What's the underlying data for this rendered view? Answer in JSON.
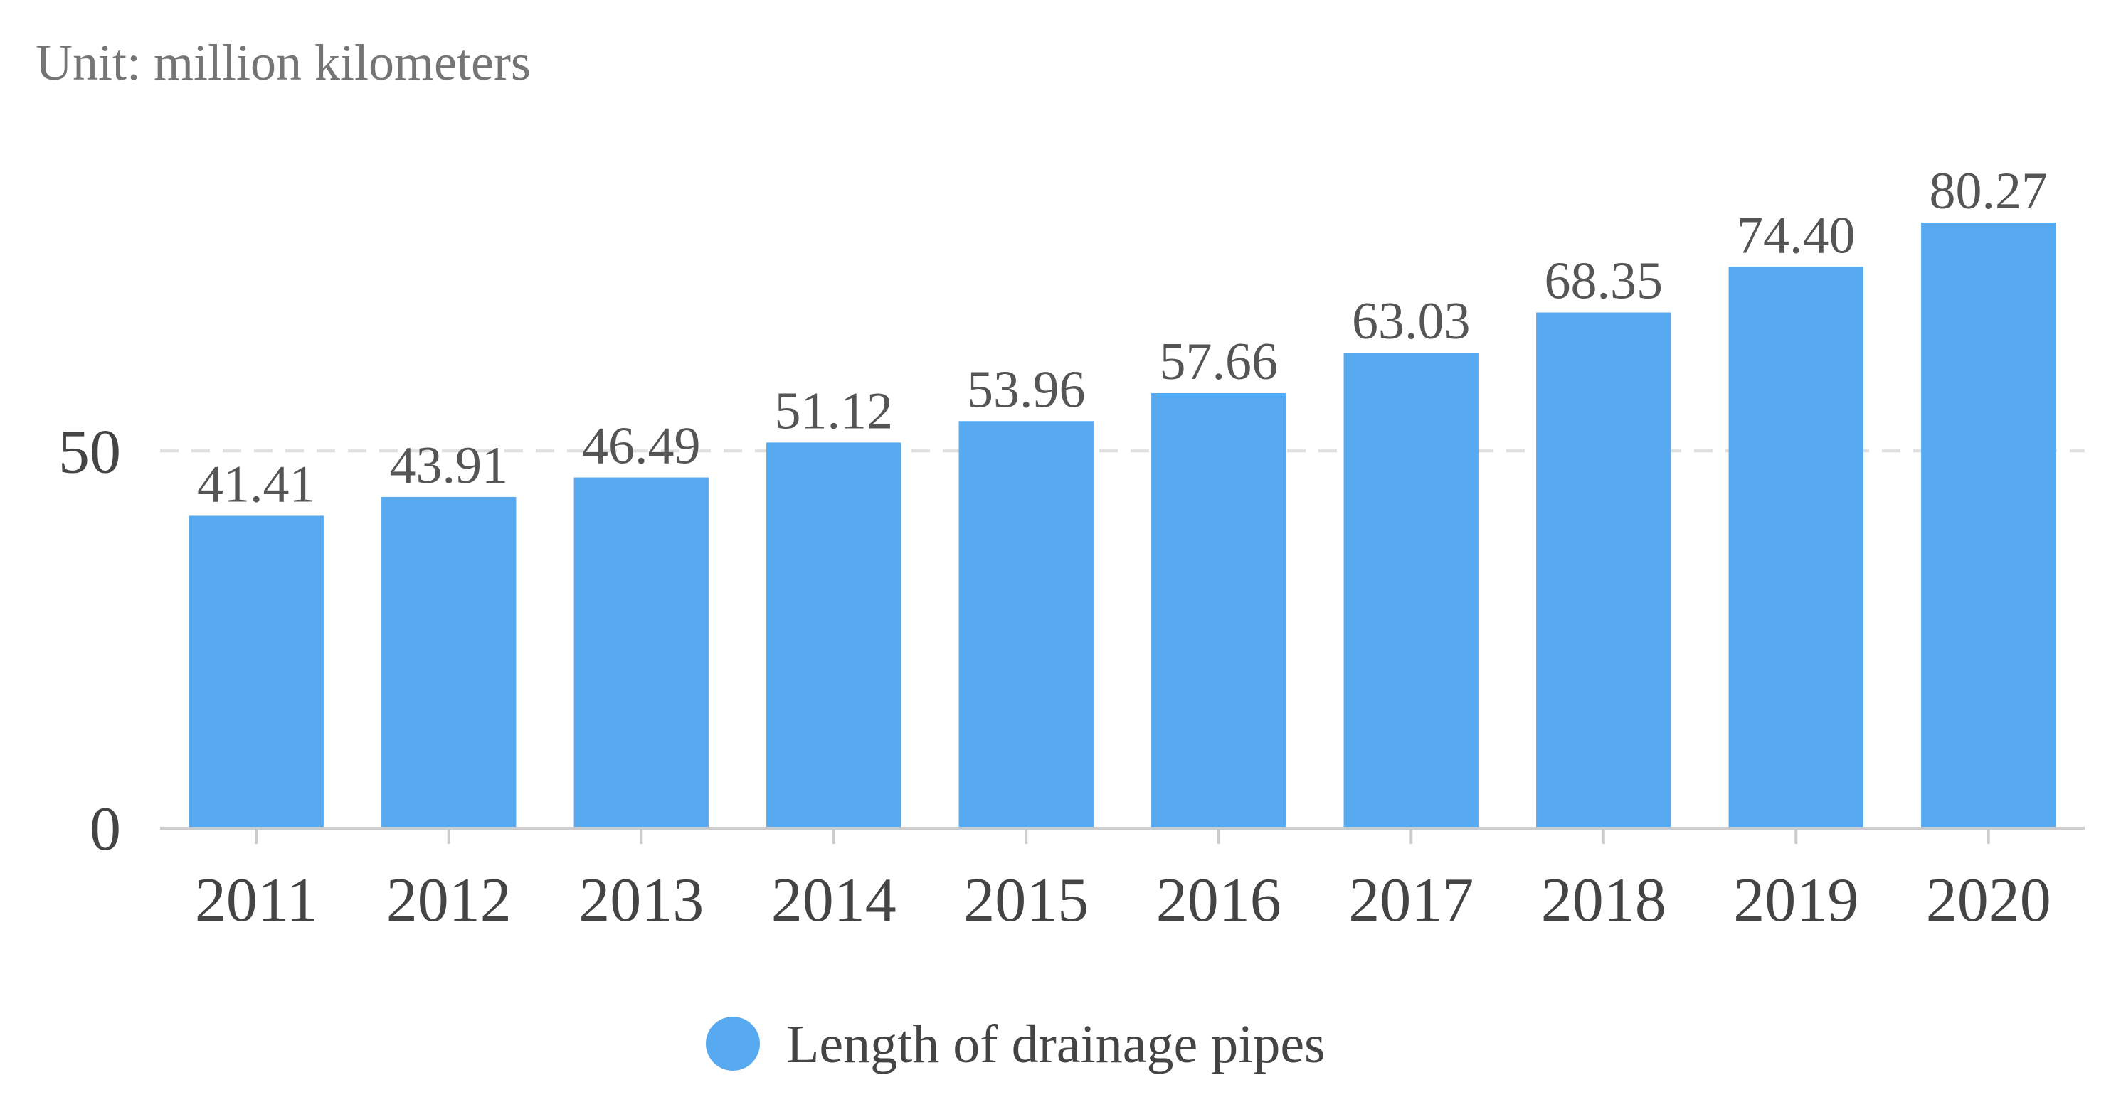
{
  "chart_data": {
    "type": "bar",
    "unit_label": "Unit: million kilometers",
    "categories": [
      "2011",
      "2012",
      "2013",
      "2014",
      "2015",
      "2016",
      "2017",
      "2018",
      "2019",
      "2020"
    ],
    "series": [
      {
        "name": "Length of drainage pipes",
        "color": "#58aaf0",
        "values": [
          41.41,
          43.91,
          46.49,
          51.12,
          53.96,
          57.66,
          63.03,
          68.35,
          74.4,
          80.27
        ],
        "labels": [
          "41.41",
          "43.91",
          "46.49",
          "51.12",
          "53.96",
          "57.66",
          "63.03",
          "68.35",
          "74.40",
          "80.27"
        ]
      }
    ],
    "y_ticks": [
      0,
      50
    ],
    "y_tick_labels": [
      "0",
      "50"
    ],
    "ylim": [
      0,
      80.27
    ],
    "grid": "dashed horizontal line at 50",
    "legend_position": "bottom-center",
    "colors": {
      "bar": "#58aaf0",
      "grid": "#dddddd",
      "axis": "#cccccc"
    }
  }
}
